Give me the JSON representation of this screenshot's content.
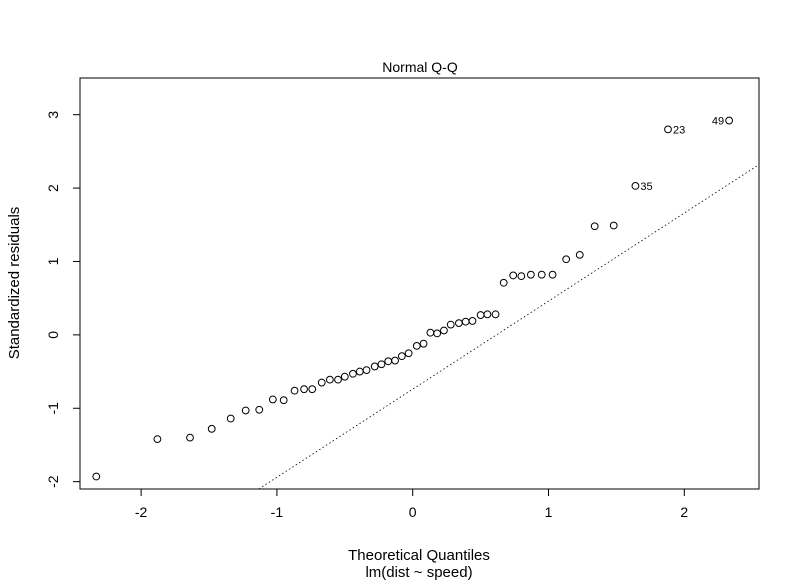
{
  "chart_data": {
    "type": "scatter",
    "title": "Normal Q-Q",
    "xlabel": "Theoretical Quantiles",
    "subtitle": "lm(dist ~ speed)",
    "ylabel": "Standardized residuals",
    "xlim": [
      -2.45,
      2.55
    ],
    "ylim": [
      -2.1,
      3.5
    ],
    "xticks": [
      -2,
      -1,
      0,
      1,
      2
    ],
    "yticks": [
      -2,
      -1,
      0,
      1,
      2,
      3
    ],
    "grid": false,
    "reference_line": {
      "style": "dotted",
      "slope": 1.2,
      "intercept": -0.74
    },
    "points": [
      {
        "x": -2.33,
        "y": -1.93
      },
      {
        "x": -1.88,
        "y": -1.42
      },
      {
        "x": -1.64,
        "y": -1.4
      },
      {
        "x": -1.48,
        "y": -1.28
      },
      {
        "x": -1.34,
        "y": -1.14
      },
      {
        "x": -1.23,
        "y": -1.03
      },
      {
        "x": -1.13,
        "y": -1.02
      },
      {
        "x": -1.03,
        "y": -0.88
      },
      {
        "x": -0.95,
        "y": -0.89
      },
      {
        "x": -0.87,
        "y": -0.76
      },
      {
        "x": -0.8,
        "y": -0.74
      },
      {
        "x": -0.74,
        "y": -0.74
      },
      {
        "x": -0.67,
        "y": -0.65
      },
      {
        "x": -0.61,
        "y": -0.61
      },
      {
        "x": -0.55,
        "y": -0.61
      },
      {
        "x": -0.5,
        "y": -0.57
      },
      {
        "x": -0.44,
        "y": -0.53
      },
      {
        "x": -0.39,
        "y": -0.5
      },
      {
        "x": -0.34,
        "y": -0.48
      },
      {
        "x": -0.28,
        "y": -0.43
      },
      {
        "x": -0.23,
        "y": -0.4
      },
      {
        "x": -0.18,
        "y": -0.36
      },
      {
        "x": -0.13,
        "y": -0.35
      },
      {
        "x": -0.08,
        "y": -0.29
      },
      {
        "x": -0.03,
        "y": -0.25
      },
      {
        "x": 0.03,
        "y": -0.15
      },
      {
        "x": 0.08,
        "y": -0.12
      },
      {
        "x": 0.13,
        "y": 0.03
      },
      {
        "x": 0.18,
        "y": 0.02
      },
      {
        "x": 0.23,
        "y": 0.06
      },
      {
        "x": 0.28,
        "y": 0.14
      },
      {
        "x": 0.34,
        "y": 0.16
      },
      {
        "x": 0.39,
        "y": 0.18
      },
      {
        "x": 0.44,
        "y": 0.19
      },
      {
        "x": 0.5,
        "y": 0.27
      },
      {
        "x": 0.55,
        "y": 0.28
      },
      {
        "x": 0.61,
        "y": 0.28
      },
      {
        "x": 0.67,
        "y": 0.71
      },
      {
        "x": 0.74,
        "y": 0.81
      },
      {
        "x": 0.8,
        "y": 0.8
      },
      {
        "x": 0.87,
        "y": 0.82
      },
      {
        "x": 0.95,
        "y": 0.82
      },
      {
        "x": 1.03,
        "y": 0.82
      },
      {
        "x": 1.13,
        "y": 1.03
      },
      {
        "x": 1.23,
        "y": 1.09
      },
      {
        "x": 1.34,
        "y": 1.48
      },
      {
        "x": 1.48,
        "y": 1.49
      },
      {
        "x": 1.64,
        "y": 2.03,
        "label": "35"
      },
      {
        "x": 1.88,
        "y": 2.8,
        "label": "23"
      },
      {
        "x": 2.33,
        "y": 2.92,
        "label": "49"
      }
    ]
  }
}
